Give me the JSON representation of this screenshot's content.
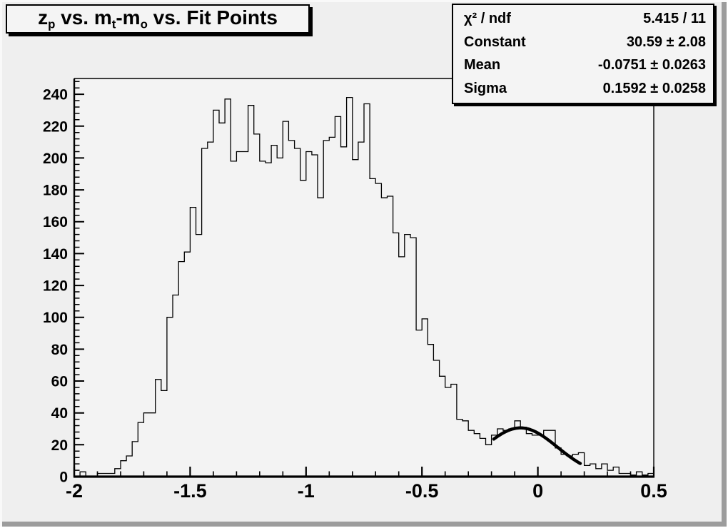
{
  "canvas": {
    "bg": "#efefef",
    "frame_bg": "#f3f3f3",
    "line_color": "#000000",
    "box_bg": "#f4f4f4"
  },
  "title": {
    "text": "z_p vs. m_t-m_o vs. Fit Points",
    "parts": [
      {
        "t": "z"
      },
      {
        "t": "p",
        "sub": true
      },
      {
        "t": " vs. m"
      },
      {
        "t": "t",
        "sub": true
      },
      {
        "t": "-m"
      },
      {
        "t": "o",
        "sub": true
      },
      {
        "t": " vs. Fit Points"
      }
    ]
  },
  "stats": {
    "rows": [
      {
        "label": "χ² / ndf",
        "value": "5.415 / 11"
      },
      {
        "label": "Constant",
        "value": "30.59 ± 2.08"
      },
      {
        "label": "Mean",
        "value": "-0.0751 ± 0.0263"
      },
      {
        "label": "Sigma",
        "value": "0.1592 ± 0.0258"
      }
    ]
  },
  "chart_data": {
    "type": "bar",
    "subtype": "histogram-step-outline",
    "title": "z_p vs. m_t-m_o vs. Fit Points",
    "xlabel": "",
    "ylabel": "",
    "xlim": [
      -2.0,
      0.5
    ],
    "ylim": [
      0,
      249.9
    ],
    "grid": false,
    "x_start": -2.0,
    "bin_width": 0.025,
    "values": [
      0,
      3,
      0,
      0,
      2,
      2,
      2,
      5,
      10,
      13,
      22,
      34,
      40,
      40,
      61,
      54,
      100,
      114,
      135,
      141,
      169,
      152,
      206,
      210,
      230,
      222,
      237,
      198,
      204,
      204,
      233,
      215,
      198,
      197,
      208,
      200,
      223,
      211,
      206,
      186,
      204,
      202,
      175,
      211,
      213,
      226,
      207,
      238,
      199,
      210,
      234,
      187,
      184,
      175,
      176,
      153,
      138,
      152,
      150,
      92,
      99,
      83,
      73,
      63,
      56,
      58,
      36,
      35,
      29,
      27,
      24,
      20,
      26,
      30,
      29,
      30,
      35,
      31,
      27,
      26,
      26,
      29,
      29,
      18,
      14,
      13,
      14,
      15,
      7,
      8,
      5,
      8,
      4,
      6,
      2,
      2,
      1,
      3,
      1,
      2
    ],
    "x_ticks": {
      "major": [
        -2,
        -1.5,
        -1,
        -0.5,
        0,
        0.5
      ],
      "labels": [
        "-2",
        "-1.5",
        "-1",
        "-0.5",
        "0",
        "0.5"
      ],
      "minor_step": 0.1
    },
    "y_ticks": {
      "major_step": 20,
      "major_max": 240,
      "minor_step": 4,
      "labels": [
        "0",
        "20",
        "40",
        "60",
        "80",
        "100",
        "120",
        "140",
        "160",
        "180",
        "200",
        "220",
        "240"
      ]
    },
    "fit": {
      "type": "gaussian",
      "chi2": 5.415,
      "ndf": 11,
      "constant": 30.59,
      "constant_err": 2.08,
      "mean": -0.0751,
      "mean_err": 0.0263,
      "sigma": 0.1592,
      "sigma_err": 0.0258,
      "range": [
        -0.19,
        0.183
      ]
    }
  }
}
